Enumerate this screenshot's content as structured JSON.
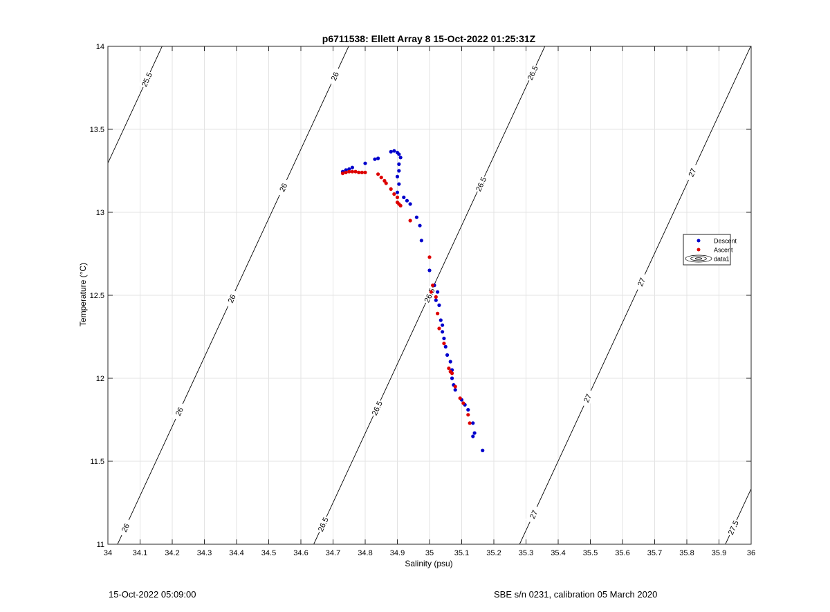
{
  "chart_data": {
    "type": "scatter",
    "title": "p6711538: Ellett Array 8 15-Oct-2022 01:25:31Z",
    "xlabel": "Salinity (psu)",
    "ylabel": "Temperature (°C)",
    "xlim": [
      34,
      36
    ],
    "ylim": [
      11,
      14
    ],
    "xticks": [
      34,
      34.1,
      34.2,
      34.3,
      34.4,
      34.5,
      34.6,
      34.7,
      34.8,
      34.9,
      35,
      35.1,
      35.2,
      35.3,
      35.4,
      35.5,
      35.6,
      35.7,
      35.8,
      35.9,
      36
    ],
    "xtick_labels": [
      "34",
      "34.1",
      "34.2",
      "34.3",
      "34.4",
      "34.5",
      "34.6",
      "34.7",
      "34.8",
      "34.9",
      "35",
      "35.1",
      "35.2",
      "35.3",
      "35.4",
      "35.5",
      "35.6",
      "35.7",
      "35.8",
      "35.9",
      "36"
    ],
    "yticks": [
      11,
      11.5,
      12,
      12.5,
      13,
      13.5,
      14
    ],
    "ytick_labels": [
      "11",
      "11.5",
      "12",
      "12.5",
      "13",
      "13.5",
      "14"
    ],
    "grid": true,
    "legend_position": "right",
    "legend": [
      "Descent",
      "Ascent",
      "data1"
    ],
    "series": [
      {
        "name": "Descent",
        "color": "#0000cc",
        "points": [
          [
            34.73,
            13.245
          ],
          [
            34.74,
            13.255
          ],
          [
            34.75,
            13.26
          ],
          [
            34.76,
            13.27
          ],
          [
            34.8,
            13.295
          ],
          [
            34.83,
            13.32
          ],
          [
            34.84,
            13.325
          ],
          [
            34.88,
            13.365
          ],
          [
            34.89,
            13.37
          ],
          [
            34.9,
            13.36
          ],
          [
            34.905,
            13.35
          ],
          [
            34.91,
            13.33
          ],
          [
            34.905,
            13.29
          ],
          [
            34.905,
            13.25
          ],
          [
            34.9,
            13.215
          ],
          [
            34.905,
            13.17
          ],
          [
            34.9,
            13.12
          ],
          [
            34.92,
            13.09
          ],
          [
            34.93,
            13.07
          ],
          [
            34.94,
            13.05
          ],
          [
            34.96,
            12.97
          ],
          [
            34.97,
            12.92
          ],
          [
            34.975,
            12.83
          ],
          [
            35.0,
            12.65
          ],
          [
            35.015,
            12.56
          ],
          [
            35.025,
            12.52
          ],
          [
            35.02,
            12.47
          ],
          [
            35.03,
            12.44
          ],
          [
            35.035,
            12.35
          ],
          [
            35.04,
            12.32
          ],
          [
            35.04,
            12.28
          ],
          [
            35.045,
            12.24
          ],
          [
            35.05,
            12.19
          ],
          [
            35.055,
            12.14
          ],
          [
            35.065,
            12.1
          ],
          [
            35.07,
            12.05
          ],
          [
            35.07,
            12.0
          ],
          [
            35.075,
            11.96
          ],
          [
            35.08,
            11.93
          ],
          [
            35.1,
            11.87
          ],
          [
            35.11,
            11.84
          ],
          [
            35.12,
            11.81
          ],
          [
            35.135,
            11.73
          ],
          [
            35.14,
            11.67
          ],
          [
            35.135,
            11.65
          ],
          [
            35.165,
            11.565
          ]
        ]
      },
      {
        "name": "Ascent",
        "color": "#dd0000",
        "points": [
          [
            34.73,
            13.235
          ],
          [
            34.74,
            13.24
          ],
          [
            34.75,
            13.245
          ],
          [
            34.76,
            13.245
          ],
          [
            34.77,
            13.245
          ],
          [
            34.78,
            13.24
          ],
          [
            34.79,
            13.24
          ],
          [
            34.8,
            13.24
          ],
          [
            34.84,
            13.23
          ],
          [
            34.85,
            13.21
          ],
          [
            34.86,
            13.19
          ],
          [
            34.865,
            13.175
          ],
          [
            34.88,
            13.14
          ],
          [
            34.89,
            13.11
          ],
          [
            34.9,
            13.09
          ],
          [
            34.9,
            13.06
          ],
          [
            34.905,
            13.05
          ],
          [
            34.91,
            13.04
          ],
          [
            34.94,
            12.95
          ],
          [
            35.0,
            12.73
          ],
          [
            35.01,
            12.56
          ],
          [
            35.005,
            12.52
          ],
          [
            35.02,
            12.49
          ],
          [
            35.025,
            12.39
          ],
          [
            35.03,
            12.3
          ],
          [
            35.045,
            12.21
          ],
          [
            35.06,
            12.06
          ],
          [
            35.065,
            12.04
          ],
          [
            35.07,
            12.03
          ],
          [
            35.08,
            11.95
          ],
          [
            35.095,
            11.88
          ],
          [
            35.105,
            11.85
          ],
          [
            35.12,
            11.78
          ],
          [
            35.125,
            11.73
          ]
        ]
      }
    ],
    "density_contours": [
      {
        "label": "25.5",
        "x_at_t11": 33.45,
        "labels_at_t": [
          13.8
        ]
      },
      {
        "label": "26",
        "x_at_t11": 34.03,
        "labels_at_t": [
          11.1,
          11.8,
          12.48,
          13.15,
          13.82
        ]
      },
      {
        "label": "26.5",
        "x_at_t11": 34.64,
        "labels_at_t": [
          11.12,
          11.82,
          12.5,
          13.17,
          13.84
        ]
      },
      {
        "label": "27",
        "x_at_t11": 35.28,
        "labels_at_t": [
          11.18,
          11.88,
          12.58,
          13.24
        ]
      },
      {
        "label": "27.5",
        "x_at_t11": 35.92,
        "labels_at_t": [
          11.1
        ]
      }
    ]
  },
  "footer": {
    "datetime": "15-Oct-2022 05:09:00",
    "instrument": "SBE s/n 0231, calibration 05 March 2020"
  }
}
